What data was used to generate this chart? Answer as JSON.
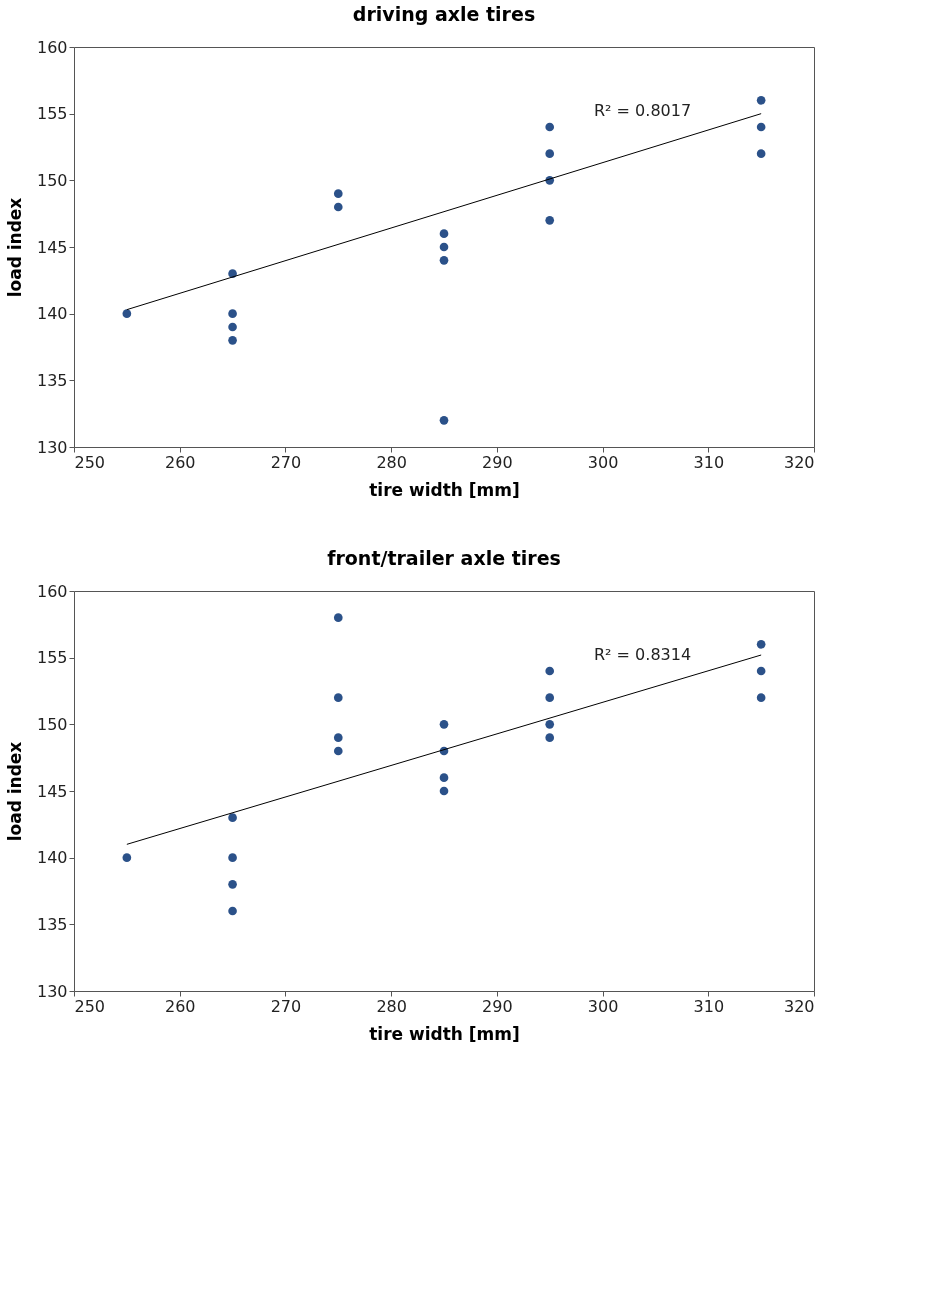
{
  "chart_data": [
    {
      "type": "scatter",
      "title": "driving axle tires",
      "xlabel": "tire width [mm]",
      "ylabel": "load index",
      "xlim": [
        250,
        320
      ],
      "xticks": [
        250,
        260,
        270,
        280,
        290,
        300,
        310,
        320
      ],
      "ylim": [
        130,
        160
      ],
      "yticks": [
        130,
        135,
        140,
        145,
        150,
        155,
        160
      ],
      "grid": false,
      "series": [
        {
          "color": "#2b5189",
          "marker": "circle",
          "x": [
            255,
            265,
            265,
            265,
            265,
            275,
            275,
            285,
            285,
            285,
            285,
            295,
            295,
            295,
            295,
            315,
            315,
            315
          ],
          "values": [
            140,
            143,
            140,
            139,
            138,
            149,
            148,
            146,
            145,
            144,
            132,
            154,
            152,
            150,
            147,
            156,
            154,
            152
          ]
        },
        {
          "type": "line",
          "marker": "none",
          "color": "#000000",
          "x": [
            255,
            315
          ],
          "values": [
            140.3,
            155.0
          ]
        }
      ],
      "annotations": [
        "R² = 0.8017"
      ]
    },
    {
      "type": "scatter",
      "title": "front/trailer axle tires",
      "xlabel": "tire width [mm]",
      "ylabel": "load index",
      "xlim": [
        250,
        320
      ],
      "xticks": [
        250,
        260,
        270,
        280,
        290,
        300,
        310,
        320
      ],
      "ylim": [
        130,
        160
      ],
      "yticks": [
        130,
        135,
        140,
        145,
        150,
        155,
        160
      ],
      "grid": false,
      "series": [
        {
          "color": "#2b5189",
          "marker": "circle",
          "x": [
            255,
            265,
            265,
            265,
            265,
            275,
            275,
            275,
            275,
            285,
            285,
            285,
            285,
            295,
            295,
            295,
            295,
            315,
            315,
            315
          ],
          "values": [
            140,
            143,
            140,
            138,
            136,
            158,
            152,
            149,
            148,
            150,
            148,
            146,
            145,
            154,
            152,
            150,
            149,
            156,
            154,
            152
          ]
        },
        {
          "type": "line",
          "marker": "none",
          "color": "#000000",
          "x": [
            255,
            315
          ],
          "values": [
            141.0,
            155.2
          ]
        }
      ],
      "annotations": [
        "R² = 0.8314"
      ]
    }
  ]
}
